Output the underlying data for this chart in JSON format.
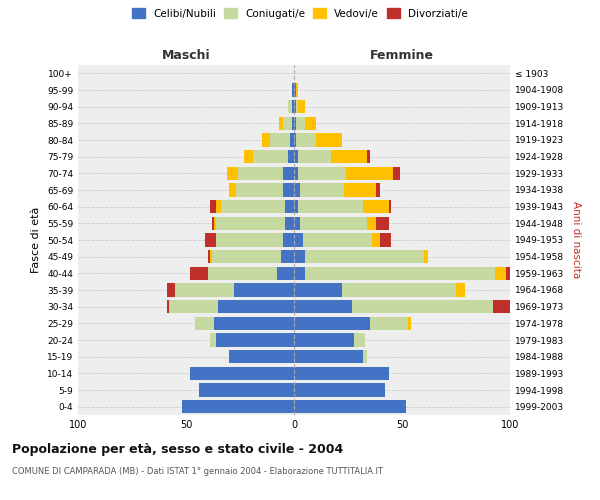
{
  "age_groups": [
    "0-4",
    "5-9",
    "10-14",
    "15-19",
    "20-24",
    "25-29",
    "30-34",
    "35-39",
    "40-44",
    "45-49",
    "50-54",
    "55-59",
    "60-64",
    "65-69",
    "70-74",
    "75-79",
    "80-84",
    "85-89",
    "90-94",
    "95-99",
    "100+"
  ],
  "birth_years": [
    "1999-2003",
    "1994-1998",
    "1989-1993",
    "1984-1988",
    "1979-1983",
    "1974-1978",
    "1969-1973",
    "1964-1968",
    "1959-1963",
    "1954-1958",
    "1949-1953",
    "1944-1948",
    "1939-1943",
    "1934-1938",
    "1929-1933",
    "1924-1928",
    "1919-1923",
    "1914-1918",
    "1909-1913",
    "1904-1908",
    "≤ 1903"
  ],
  "males": {
    "celibi": [
      52,
      44,
      48,
      30,
      36,
      37,
      35,
      28,
      8,
      6,
      5,
      4,
      4,
      5,
      5,
      3,
      2,
      1,
      1,
      1,
      0
    ],
    "coniugati": [
      0,
      0,
      0,
      0,
      3,
      9,
      23,
      27,
      32,
      32,
      31,
      32,
      30,
      22,
      21,
      16,
      9,
      4,
      2,
      0,
      0
    ],
    "vedovi": [
      0,
      0,
      0,
      0,
      0,
      0,
      0,
      0,
      0,
      1,
      0,
      1,
      2,
      3,
      5,
      4,
      4,
      2,
      0,
      0,
      0
    ],
    "divorziati": [
      0,
      0,
      0,
      0,
      0,
      0,
      1,
      4,
      8,
      1,
      5,
      1,
      3,
      0,
      0,
      0,
      0,
      0,
      0,
      0,
      0
    ]
  },
  "females": {
    "nubili": [
      52,
      42,
      44,
      32,
      28,
      35,
      27,
      22,
      5,
      5,
      4,
      3,
      2,
      3,
      2,
      2,
      1,
      1,
      1,
      1,
      0
    ],
    "coniugate": [
      0,
      0,
      0,
      2,
      5,
      18,
      65,
      53,
      88,
      55,
      32,
      31,
      30,
      20,
      22,
      15,
      9,
      4,
      1,
      0,
      0
    ],
    "vedove": [
      0,
      0,
      0,
      0,
      0,
      1,
      0,
      4,
      5,
      2,
      4,
      4,
      12,
      15,
      22,
      17,
      12,
      5,
      3,
      1,
      0
    ],
    "divorziate": [
      0,
      0,
      0,
      0,
      0,
      0,
      8,
      0,
      9,
      0,
      5,
      6,
      1,
      2,
      3,
      1,
      0,
      0,
      0,
      0,
      0
    ]
  },
  "colors": {
    "celibi": "#4472c4",
    "coniugati": "#c5d9a0",
    "vedovi": "#ffc000",
    "divorziati": "#c0302a"
  },
  "legend_labels": [
    "Celibi/Nubili",
    "Coniugati/e",
    "Vedovi/e",
    "Divorziati/e"
  ],
  "xlim": 100,
  "title": "Popolazione per età, sesso e stato civile - 2004",
  "subtitle": "COMUNE DI CAMPARADA (MB) - Dati ISTAT 1° gennaio 2004 - Elaborazione TUTTITALIA.IT",
  "ylabel_left": "Fasce di età",
  "ylabel_right": "Anni di nascita",
  "xlabel_left": "Maschi",
  "xlabel_right": "Femmine",
  "bg_color": "#eeeeee"
}
